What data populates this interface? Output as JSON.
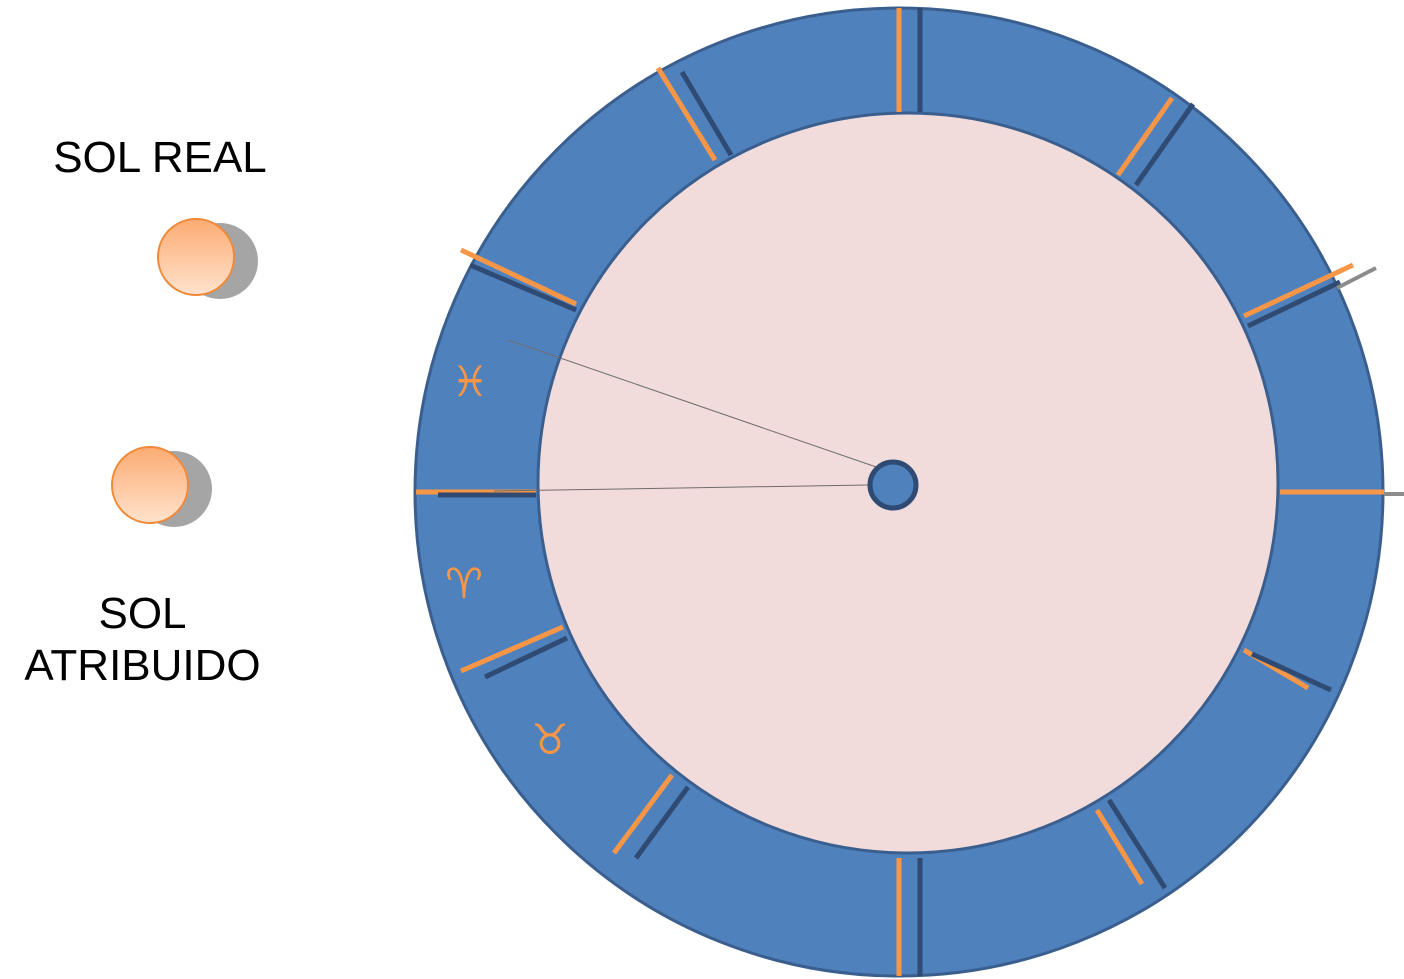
{
  "legend": {
    "real_sun_label": "SOL REAL",
    "attributed_sun_label_line1": "SOL",
    "attributed_sun_label_line2": "ATRIBUIDO"
  },
  "zodiac": {
    "signs": [
      {
        "name": "pisces",
        "symbol": "♓︎"
      },
      {
        "name": "aries",
        "symbol": "♈︎"
      },
      {
        "name": "taurus",
        "symbol": "♉︎"
      }
    ]
  },
  "colors": {
    "ring": "#4f81bd",
    "ring_border": "#3a5f8f",
    "inner_disc": "#f2dcdb",
    "orange_marker": "#f79646",
    "dark_marker": "#2f4b73",
    "sun_fill": "#fbc08f",
    "sun_shadow": "#a5a5a5"
  }
}
